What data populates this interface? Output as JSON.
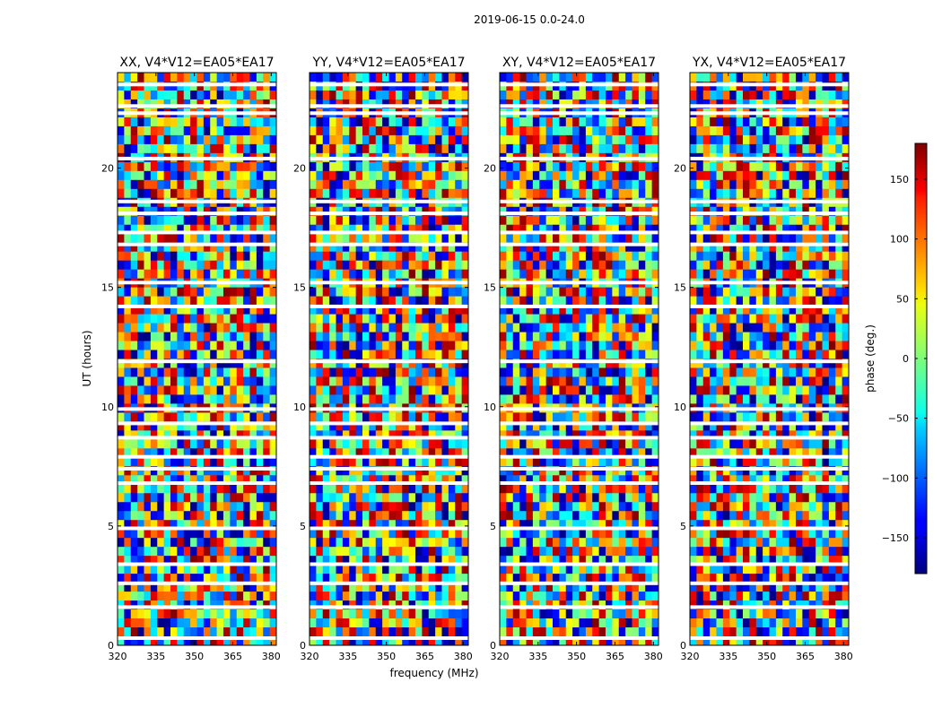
{
  "chart_data": {
    "type": "heatmap",
    "suptitle": "2019-06-15 0.0-24.0",
    "xlabel": "frequency (MHz)",
    "ylabel": "UT (hours)",
    "xlim": [
      320,
      382
    ],
    "ylim": [
      0,
      24
    ],
    "xticks": [
      320,
      335,
      350,
      365,
      380
    ],
    "yticks": [
      0,
      5,
      10,
      15,
      20
    ],
    "panels": [
      {
        "title": "XX, V4*V12=EA05*EA17"
      },
      {
        "title": "YY, V4*V12=EA05*EA17"
      },
      {
        "title": "XY, V4*V12=EA05*EA17"
      },
      {
        "title": "YX, V4*V12=EA05*EA17"
      }
    ],
    "colorbar": {
      "label": "phase (deg.)",
      "range": [
        -180,
        180
      ],
      "ticks": [
        150,
        100,
        50,
        0,
        -50,
        -100,
        -150
      ],
      "colormap": "jet"
    },
    "flagged_hours": [
      0.3,
      1.6,
      2.6,
      3.4,
      4.9,
      6.8,
      7.4,
      7.9,
      8.7,
      9.3,
      9.9,
      11.9,
      14.2,
      15.2,
      16.8,
      17.3,
      18.1,
      18.6,
      20.4,
      22.3,
      22.6,
      23.5
    ]
  }
}
